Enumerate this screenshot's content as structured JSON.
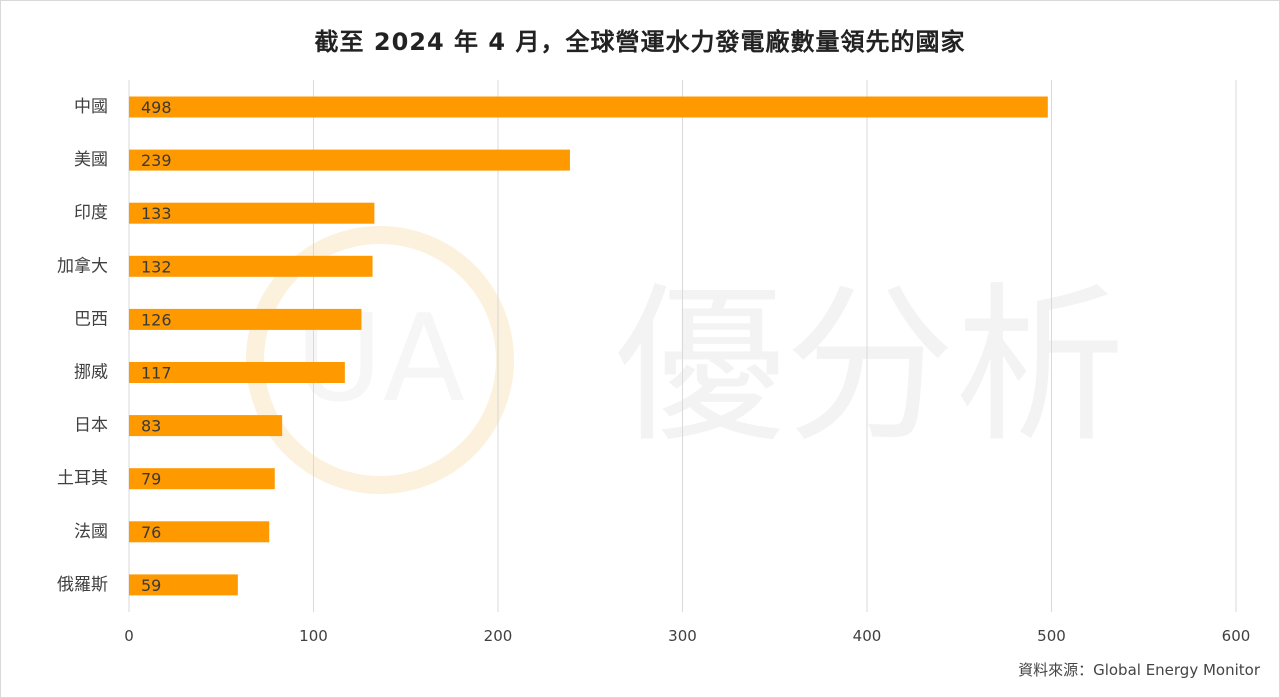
{
  "title": "截至 2024 年 4 月，全球營運水力發電廠數量領先的國家",
  "source": "資料來源：Global Energy Monitor",
  "watermark": {
    "logo_text": "UA",
    "text": "優分析"
  },
  "colors": {
    "bar": "#FF9900",
    "grid": "#d9d9d9",
    "label": "#404040",
    "watermark": "#f3f3f3"
  },
  "chart_data": {
    "type": "bar",
    "orientation": "horizontal",
    "categories": [
      "中國",
      "美國",
      "印度",
      "加拿大",
      "巴西",
      "挪威",
      "日本",
      "土耳其",
      "法國",
      "俄羅斯"
    ],
    "values": [
      498,
      239,
      133,
      132,
      126,
      117,
      83,
      79,
      76,
      59
    ],
    "xlim": [
      0,
      600
    ],
    "xticks": [
      0,
      100,
      200,
      300,
      400,
      500,
      600
    ],
    "grid": true,
    "data_labels": "inside-base"
  }
}
